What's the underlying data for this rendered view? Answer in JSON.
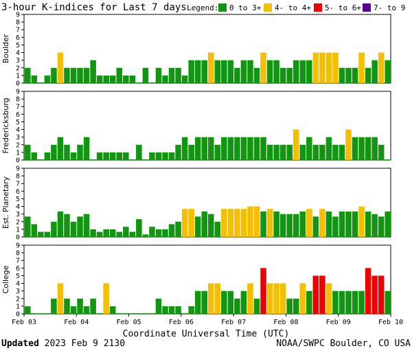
{
  "chart_data": {
    "type": "bar",
    "title": "3-hour K-indices for Last 7 days",
    "legend": {
      "label": "Legend:",
      "items": [
        {
          "label": "0 to 3+",
          "color": "#129612"
        },
        {
          "label": "4- to 4+",
          "color": "#f3bf00"
        },
        {
          "label": "5- to 6+",
          "color": "#ee0000"
        },
        {
          "label": "7- to 9",
          "color": "#550099"
        }
      ]
    },
    "ylim": [
      0,
      9
    ],
    "yticks": [
      "0",
      "1",
      "2",
      "3",
      "4",
      "5",
      "6",
      "7",
      "8",
      "9"
    ],
    "x_ticks": [
      "Feb 03",
      "Feb 04",
      "Feb 05",
      "Feb 06",
      "Feb 07",
      "Feb 08",
      "Feb 09",
      "Feb 10"
    ],
    "xlabel": "Coordinate Universal Time (UTC)",
    "series": [
      {
        "name": "Boulder",
        "values": [
          2,
          1,
          0,
          1,
          2,
          4,
          2,
          2,
          2,
          2,
          3,
          1,
          1,
          1,
          2,
          1,
          1,
          0,
          2,
          0,
          2,
          1,
          2,
          2,
          1,
          3,
          3,
          3,
          4,
          3,
          3,
          3,
          2,
          3,
          3,
          2,
          4,
          3,
          3,
          2,
          2,
          3,
          3,
          3,
          4,
          4,
          4,
          4,
          2,
          2,
          2,
          4,
          2,
          3,
          4,
          3,
          3,
          0
        ]
      },
      {
        "name": "Fredericksburg",
        "values": [
          2,
          1,
          0,
          1,
          2,
          3,
          2,
          1,
          2,
          3,
          0,
          1,
          1,
          1,
          1,
          1,
          0,
          2,
          0,
          1,
          1,
          1,
          1,
          2,
          3,
          2,
          3,
          3,
          3,
          2,
          3,
          3,
          3,
          3,
          3,
          3,
          3,
          2,
          2,
          2,
          2,
          4,
          2,
          3,
          2,
          2,
          3,
          2,
          2,
          4,
          3,
          3,
          3,
          3,
          2,
          0
        ]
      },
      {
        "name": "Est. Planetary",
        "values": [
          2.67,
          1.67,
          0.67,
          0.67,
          2,
          3.33,
          3,
          2,
          2.67,
          3,
          1,
          0.67,
          1,
          1,
          0.67,
          1.33,
          0.67,
          2.33,
          0.33,
          1.33,
          1,
          1,
          1.67,
          2,
          3.67,
          3.67,
          2.67,
          3.33,
          3,
          2,
          3.67,
          3.67,
          3.67,
          3.67,
          4,
          4,
          3.33,
          3.67,
          3.33,
          3,
          3,
          3,
          3.33,
          3.67,
          2.67,
          3.67,
          3.33,
          2.67,
          3.33,
          3.33,
          3.33,
          4,
          3.33,
          3,
          2.67,
          3.33,
          3.33
        ]
      },
      {
        "name": "College",
        "values": [
          1,
          0,
          0,
          0,
          2,
          4,
          2,
          1,
          2,
          1,
          2,
          0,
          4,
          1,
          0,
          0,
          0,
          0,
          0,
          0,
          2,
          1,
          1,
          1,
          0,
          1,
          3,
          3,
          4,
          4,
          3,
          3,
          2,
          3,
          4,
          2,
          6,
          4,
          4,
          4,
          2,
          2,
          4,
          3,
          5,
          5,
          4,
          3,
          3,
          3,
          3,
          3,
          6,
          5,
          5,
          3,
          0
        ]
      }
    ]
  },
  "footer": {
    "updated_label": "Updated",
    "updated_time": "2023 Feb  9 2130",
    "source": "NOAA/SWPC Boulder, CO USA"
  }
}
